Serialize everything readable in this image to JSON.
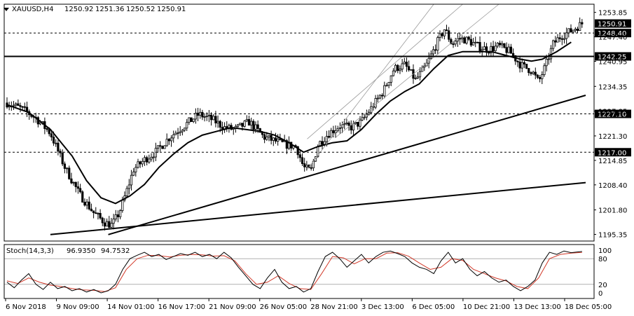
{
  "window": {
    "symbol_title": "XAUUSD,H4",
    "ohlc_values": [
      "1250.92",
      "1251.36",
      "1250.52",
      "1250.91"
    ]
  },
  "chart_data": {
    "type": "candlestick",
    "symbol": "XAUUSD",
    "timeframe": "H4",
    "ohlc_last": {
      "open": 1250.92,
      "high": 1251.36,
      "low": 1250.52,
      "close": 1250.91
    },
    "price_ticks": [
      "1253.85",
      "1247.40",
      "1240.95",
      "1234.35",
      "1227.85",
      "1221.30",
      "1214.85",
      "1208.40",
      "1201.80",
      "1195.35"
    ],
    "price_range": [
      1193.6,
      1256.0
    ],
    "time_labels": [
      "6 Nov 2018",
      "9 Nov 09:00",
      "14 Nov 01:00",
      "16 Nov 17:00",
      "21 Nov 09:00",
      "26 Nov 05:00",
      "28 Nov 21:00",
      "3 Dec 13:00",
      "6 Dec 05:00",
      "10 Dec 21:00",
      "13 Dec 13:00",
      "18 Dec 05:00"
    ],
    "bar_count": 260,
    "close_path": [
      [
        0,
        1230.0
      ],
      [
        8,
        1228.5
      ],
      [
        16,
        1226.0
      ],
      [
        24,
        1222.0
      ],
      [
        32,
        1213.0
      ],
      [
        40,
        1206.0
      ],
      [
        48,
        1201.0
      ],
      [
        54,
        1198.5
      ],
      [
        58,
        1197.8
      ],
      [
        62,
        1201.0
      ],
      [
        66,
        1206.5
      ],
      [
        70,
        1212.5
      ],
      [
        76,
        1215.0
      ],
      [
        82,
        1217.0
      ],
      [
        90,
        1221.0
      ],
      [
        98,
        1224.0
      ],
      [
        106,
        1227.0
      ],
      [
        114,
        1225.5
      ],
      [
        120,
        1223.5
      ],
      [
        126,
        1223.0
      ],
      [
        134,
        1225.0
      ],
      [
        142,
        1221.0
      ],
      [
        148,
        1220.0
      ],
      [
        154,
        1219.0
      ],
      [
        160,
        1218.5
      ],
      [
        164,
        1213.0
      ],
      [
        168,
        1212.0
      ],
      [
        172,
        1219.0
      ],
      [
        178,
        1222.0
      ],
      [
        184,
        1224.0
      ],
      [
        190,
        1223.5
      ],
      [
        196,
        1225.0
      ],
      [
        202,
        1229.0
      ],
      [
        208,
        1233.0
      ],
      [
        214,
        1239.0
      ],
      [
        220,
        1240.0
      ],
      [
        226,
        1236.0
      ],
      [
        232,
        1240.0
      ],
      [
        238,
        1246.0
      ],
      [
        242,
        1249.5
      ],
      [
        246,
        1245.5
      ],
      [
        250,
        1247.0
      ],
      [
        255,
        1246.5
      ],
      [
        260,
        1245.0
      ],
      [
        266,
        1244.0
      ],
      [
        272,
        1245.0
      ],
      [
        278,
        1243.5
      ],
      [
        284,
        1240.0
      ],
      [
        290,
        1238.5
      ],
      [
        294,
        1235.5
      ],
      [
        298,
        1240.0
      ],
      [
        302,
        1245.5
      ],
      [
        306,
        1247.5
      ],
      [
        312,
        1249.0
      ],
      [
        318,
        1250.91
      ]
    ],
    "moving_average": {
      "path": [
        [
          0,
          1229.5
        ],
        [
          12,
          1227.5
        ],
        [
          24,
          1223.0
        ],
        [
          36,
          1216.0
        ],
        [
          44,
          1209.5
        ],
        [
          52,
          1205.0
        ],
        [
          60,
          1203.5
        ],
        [
          68,
          1205.5
        ],
        [
          76,
          1208.5
        ],
        [
          84,
          1213.0
        ],
        [
          92,
          1216.5
        ],
        [
          100,
          1219.5
        ],
        [
          108,
          1221.5
        ],
        [
          116,
          1222.5
        ],
        [
          124,
          1223.5
        ],
        [
          132,
          1223.0
        ],
        [
          140,
          1222.5
        ],
        [
          148,
          1221.5
        ],
        [
          156,
          1219.5
        ],
        [
          164,
          1217.0
        ],
        [
          172,
          1218.5
        ],
        [
          180,
          1219.5
        ],
        [
          188,
          1220.0
        ],
        [
          196,
          1223.0
        ],
        [
          204,
          1227.0
        ],
        [
          212,
          1230.5
        ],
        [
          220,
          1233.0
        ],
        [
          228,
          1235.0
        ],
        [
          236,
          1239.0
        ],
        [
          244,
          1242.5
        ],
        [
          252,
          1243.5
        ],
        [
          260,
          1243.5
        ],
        [
          268,
          1243.5
        ],
        [
          276,
          1242.5
        ],
        [
          284,
          1241.5
        ],
        [
          290,
          1241.0
        ],
        [
          296,
          1241.5
        ],
        [
          304,
          1243.5
        ],
        [
          312,
          1246.0
        ]
      ]
    },
    "horizontal_levels": [
      {
        "label": "1248.40",
        "style": "dashed"
      },
      {
        "label": "1242.25",
        "style": "solid"
      },
      {
        "label": "1227.10",
        "style": "dashed"
      },
      {
        "label": "1217.00",
        "style": "dashed"
      }
    ],
    "current_price": {
      "label": "1250.91"
    },
    "trendlines": [
      {
        "from": [
          56,
          1195.3
        ],
        "to": [
          320,
          1232.0
        ]
      },
      {
        "from": [
          24,
          1195.3
        ],
        "to": [
          320,
          1209.0
        ]
      }
    ],
    "channel": {
      "lines": [
        {
          "from": [
            166,
            1212.5
          ],
          "to": [
            236,
            1256.0
          ]
        },
        {
          "from": [
            166,
            1220.5
          ],
          "to": [
            252,
            1256.0
          ]
        },
        {
          "from": [
            182,
            1221.0
          ],
          "to": [
            272,
            1256.0
          ]
        }
      ]
    },
    "oscillator": {
      "title": "Stoch(14,3,3)",
      "values": [
        "96.9350",
        "94.7532"
      ],
      "ticks": [
        "100",
        "80",
        "20",
        "0"
      ],
      "levels": [
        "80",
        "20"
      ],
      "range": [
        0,
        100
      ],
      "k_path": [
        [
          0,
          25
        ],
        [
          4,
          12
        ],
        [
          8,
          30
        ],
        [
          12,
          45
        ],
        [
          16,
          20
        ],
        [
          20,
          8
        ],
        [
          24,
          25
        ],
        [
          28,
          10
        ],
        [
          32,
          15
        ],
        [
          36,
          5
        ],
        [
          40,
          10
        ],
        [
          44,
          2
        ],
        [
          48,
          8
        ],
        [
          52,
          0
        ],
        [
          56,
          5
        ],
        [
          60,
          20
        ],
        [
          64,
          55
        ],
        [
          68,
          80
        ],
        [
          72,
          88
        ],
        [
          76,
          95
        ],
        [
          80,
          85
        ],
        [
          84,
          90
        ],
        [
          88,
          78
        ],
        [
          92,
          85
        ],
        [
          96,
          92
        ],
        [
          100,
          88
        ],
        [
          104,
          95
        ],
        [
          108,
          85
        ],
        [
          112,
          90
        ],
        [
          116,
          80
        ],
        [
          120,
          95
        ],
        [
          124,
          82
        ],
        [
          128,
          60
        ],
        [
          132,
          40
        ],
        [
          136,
          20
        ],
        [
          140,
          10
        ],
        [
          144,
          35
        ],
        [
          148,
          55
        ],
        [
          152,
          25
        ],
        [
          156,
          10
        ],
        [
          160,
          15
        ],
        [
          164,
          2
        ],
        [
          168,
          10
        ],
        [
          172,
          50
        ],
        [
          176,
          85
        ],
        [
          180,
          95
        ],
        [
          184,
          80
        ],
        [
          188,
          60
        ],
        [
          192,
          75
        ],
        [
          196,
          90
        ],
        [
          200,
          70
        ],
        [
          204,
          85
        ],
        [
          208,
          95
        ],
        [
          212,
          98
        ],
        [
          216,
          92
        ],
        [
          220,
          85
        ],
        [
          224,
          70
        ],
        [
          228,
          60
        ],
        [
          232,
          55
        ],
        [
          236,
          45
        ],
        [
          240,
          75
        ],
        [
          244,
          95
        ],
        [
          248,
          70
        ],
        [
          252,
          80
        ],
        [
          256,
          55
        ],
        [
          260,
          40
        ],
        [
          264,
          50
        ],
        [
          268,
          35
        ],
        [
          272,
          25
        ],
        [
          276,
          30
        ],
        [
          280,
          15
        ],
        [
          284,
          5
        ],
        [
          288,
          15
        ],
        [
          292,
          30
        ],
        [
          296,
          70
        ],
        [
          300,
          95
        ],
        [
          304,
          90
        ],
        [
          308,
          98
        ],
        [
          312,
          94
        ],
        [
          318,
          97
        ]
      ],
      "d_path": [
        [
          0,
          28
        ],
        [
          6,
          22
        ],
        [
          12,
          35
        ],
        [
          18,
          25
        ],
        [
          24,
          18
        ],
        [
          30,
          15
        ],
        [
          36,
          10
        ],
        [
          42,
          7
        ],
        [
          48,
          6
        ],
        [
          54,
          3
        ],
        [
          60,
          12
        ],
        [
          66,
          55
        ],
        [
          72,
          80
        ],
        [
          78,
          88
        ],
        [
          84,
          87
        ],
        [
          90,
          84
        ],
        [
          96,
          88
        ],
        [
          102,
          90
        ],
        [
          108,
          89
        ],
        [
          114,
          86
        ],
        [
          120,
          87
        ],
        [
          126,
          75
        ],
        [
          132,
          45
        ],
        [
          138,
          20
        ],
        [
          144,
          25
        ],
        [
          150,
          40
        ],
        [
          156,
          22
        ],
        [
          162,
          10
        ],
        [
          168,
          8
        ],
        [
          174,
          45
        ],
        [
          180,
          85
        ],
        [
          186,
          82
        ],
        [
          192,
          68
        ],
        [
          198,
          80
        ],
        [
          204,
          80
        ],
        [
          210,
          93
        ],
        [
          216,
          94
        ],
        [
          222,
          86
        ],
        [
          228,
          70
        ],
        [
          234,
          55
        ],
        [
          240,
          60
        ],
        [
          246,
          80
        ],
        [
          252,
          76
        ],
        [
          258,
          55
        ],
        [
          264,
          45
        ],
        [
          270,
          35
        ],
        [
          276,
          28
        ],
        [
          282,
          15
        ],
        [
          288,
          10
        ],
        [
          294,
          35
        ],
        [
          300,
          80
        ],
        [
          306,
          90
        ],
        [
          312,
          93
        ],
        [
          318,
          94.75
        ]
      ]
    }
  }
}
